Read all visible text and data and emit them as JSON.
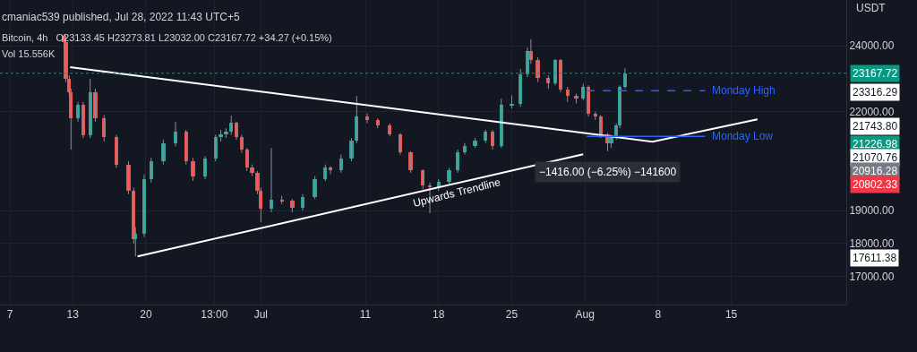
{
  "chart_data": {
    "type": "candlestick",
    "title": "Bitcoin, 4h",
    "subtitle": "O23133.45 H23273.81 L23032.00 C23167.72 +34.27 (+0.15%)",
    "ylabel": "USDT",
    "annotations": [
      "cmaniac539 published, Jul 28, 2022 11:43 UTC+5",
      "Vol 15.556K",
      "Upwards Trendline",
      "−1416.00 (−6.25%) −141600",
      "23316.29",
      "21743.80",
      "21226.98",
      "21070.76",
      "20916.28",
      "20802.33",
      "17611.38"
    ],
    "x": [
      "2022-06-12T04:00",
      "2022-06-12T08:00",
      "2022-06-12T16:00",
      "2022-06-12T20:00",
      "2022-06-13T12:00",
      "2022-06-14T00:00",
      "2022-06-14T16:00",
      "2022-06-15T04:00",
      "2022-06-16T00:00",
      "2022-06-17T04:00",
      "2022-06-18T08:00",
      "2022-06-18T20:00",
      "2022-06-19T00:00",
      "2022-06-19T20:00",
      "2022-06-20T12:00",
      "2022-06-21T16:00",
      "2022-06-22T20:00",
      "2022-06-23T20:00",
      "2022-06-24T12:00",
      "2022-06-25T16:00",
      "2022-06-26T16:00",
      "2022-06-27T04:00",
      "2022-06-27T16:00",
      "2022-06-28T04:00",
      "2022-06-28T16:00",
      "2022-06-29T04:00",
      "2022-06-29T16:00",
      "2022-06-30T04:00",
      "2022-06-30T16:00",
      "2022-07-01T00:00",
      "2022-07-02T00:00",
      "2022-07-03T00:00",
      "2022-07-04T00:00",
      "2022-07-05T00:00",
      "2022-07-06T04:00",
      "2022-07-07T04:00",
      "2022-07-07T16:00",
      "2022-07-08T16:00",
      "2022-07-09T16:00",
      "2022-07-10T04:00",
      "2022-07-11T04:00",
      "2022-07-12T04:00",
      "2022-07-13T08:00",
      "2022-07-14T08:00",
      "2022-07-15T08:00",
      "2022-07-16T12:00",
      "2022-07-17T04:00",
      "2022-07-18T00:00",
      "2022-07-19T00:00",
      "2022-07-19T20:00",
      "2022-07-20T12:00",
      "2022-07-21T12:00",
      "2022-07-22T12:00",
      "2022-07-23T04:00",
      "2022-07-24T00:00",
      "2022-07-25T00:00",
      "2022-07-25T20:00",
      "2022-07-26T12:00",
      "2022-07-26T20:00",
      "2022-07-27T12:00",
      "2022-07-28T12:00",
      "2022-07-29T04:00",
      "2022-07-29T16:00",
      "2022-07-30T08:00",
      "2022-07-31T04:00",
      "2022-07-31T20:00",
      "2022-08-01T08:00",
      "2022-08-02T00:00",
      "2022-08-02T12:00",
      "2022-08-03T04:00",
      "2022-08-03T12:00",
      "2022-08-04T00:00",
      "2022-08-04T08:00",
      "2022-08-04T20:00"
    ],
    "ohlc": [
      [
        24300,
        24350,
        23900,
        24100
      ],
      [
        24100,
        24150,
        22900,
        23000
      ],
      [
        23000,
        23100,
        22500,
        22600
      ],
      [
        22600,
        22700,
        20850,
        21800
      ],
      [
        21800,
        22300,
        21700,
        22200
      ],
      [
        22200,
        22300,
        21200,
        21300
      ],
      [
        21300,
        23000,
        21200,
        22600
      ],
      [
        22600,
        22700,
        21700,
        21800
      ],
      [
        21800,
        21900,
        21100,
        21230
      ],
      [
        21230,
        21300,
        20300,
        20400
      ],
      [
        20400,
        20500,
        19500,
        19600
      ],
      [
        19600,
        19700,
        18000,
        18130
      ],
      [
        18130,
        18500,
        17611,
        18300
      ],
      [
        18300,
        20100,
        18200,
        19950
      ],
      [
        19950,
        20600,
        19850,
        20500
      ],
      [
        20500,
        21150,
        20400,
        21040
      ],
      [
        21040,
        21700,
        20950,
        21390
      ],
      [
        21390,
        21450,
        20400,
        20500
      ],
      [
        20500,
        20600,
        19900,
        20030
      ],
      [
        20030,
        20650,
        19950,
        20580
      ],
      [
        20580,
        21300,
        20500,
        21230
      ],
      [
        21230,
        21450,
        21100,
        21310
      ],
      [
        21310,
        21500,
        21200,
        21390
      ],
      [
        21390,
        21880,
        21300,
        21660
      ],
      [
        21660,
        21700,
        21150,
        21230
      ],
      [
        21230,
        21300,
        20750,
        20850
      ],
      [
        20850,
        20900,
        20200,
        20300
      ],
      [
        20300,
        20400,
        20050,
        20140
      ],
      [
        20140,
        20200,
        19500,
        19600
      ],
      [
        19600,
        19700,
        18650,
        19050
      ],
      [
        19050,
        20900,
        18950,
        19330
      ],
      [
        19330,
        19450,
        19200,
        19300
      ],
      [
        19300,
        19350,
        18950,
        19080
      ],
      [
        19080,
        19500,
        19000,
        19400
      ],
      [
        19400,
        20050,
        19350,
        19950
      ],
      [
        19950,
        20400,
        19900,
        20300
      ],
      [
        20300,
        20350,
        20100,
        20220
      ],
      [
        20220,
        20700,
        20150,
        20580
      ],
      [
        20580,
        21200,
        20500,
        21120
      ],
      [
        21120,
        22480,
        21050,
        21850
      ],
      [
        21850,
        21950,
        21650,
        21750
      ],
      [
        21750,
        21800,
        21500,
        21580
      ],
      [
        21580,
        21650,
        21250,
        21310
      ],
      [
        21310,
        21350,
        20700,
        20770
      ],
      [
        20770,
        20800,
        20150,
        20220
      ],
      [
        20220,
        20250,
        19650,
        19760
      ],
      [
        19760,
        19850,
        18920,
        19700
      ],
      [
        19700,
        19950,
        19600,
        19870
      ],
      [
        19870,
        20300,
        19800,
        20220
      ],
      [
        20220,
        20850,
        20150,
        20770
      ],
      [
        20770,
        21050,
        20700,
        20960
      ],
      [
        20960,
        21200,
        20900,
        21120
      ],
      [
        21120,
        21450,
        21050,
        21390
      ],
      [
        21390,
        21450,
        20850,
        20960
      ],
      [
        20960,
        22400,
        20900,
        22200
      ],
      [
        22200,
        22500,
        22100,
        22250
      ],
      [
        22250,
        23300,
        22150,
        23130
      ],
      [
        23130,
        23950,
        23050,
        23840
      ],
      [
        23840,
        24200,
        23450,
        23570
      ],
      [
        23570,
        23650,
        22900,
        23020
      ],
      [
        23020,
        23100,
        22700,
        22860
      ],
      [
        22860,
        23600,
        22800,
        23570
      ],
      [
        23570,
        23600,
        22600,
        22670
      ],
      [
        22670,
        22750,
        22300,
        22480
      ],
      [
        22480,
        22550,
        22250,
        22400
      ],
      [
        22400,
        22850,
        22350,
        22750
      ],
      [
        22750,
        22800,
        21850,
        21930
      ],
      [
        21930,
        22000,
        21750,
        21850
      ],
      [
        21850,
        21900,
        21200,
        21310
      ],
      [
        21310,
        21350,
        20800,
        21040
      ],
      [
        21040,
        21300,
        20900,
        21230
      ],
      [
        21230,
        21650,
        21150,
        21580
      ],
      [
        21580,
        22800,
        21500,
        22750
      ],
      [
        22750,
        23320,
        22700,
        23168
      ]
    ],
    "series": [
      {
        "type": "line",
        "color": "#ffffff",
        "x": [
          "2022-06-12T18:00",
          "2022-08-07T11:00",
          "2022-08-17T12:00"
        ],
        "values": [
          23350,
          21090,
          21770
        ]
      },
      {
        "type": "line",
        "color": "#ffffff",
        "x": [
          "2022-06-19T05:00",
          "2022-07-31T20:00"
        ],
        "values": [
          17610,
          20710
        ]
      },
      {
        "type": "line",
        "name": "Monday High",
        "color": "#2962ff",
        "line_style": "dashed",
        "x": [
          "2022-08-01T04:00",
          "2022-08-12T12:00"
        ],
        "values": [
          22640,
          22640
        ]
      },
      {
        "type": "line",
        "name": "Monday Low",
        "color": "#2962ff",
        "line_style": "solid",
        "x": [
          "2022-08-01T04:00",
          "2022-08-12T12:00"
        ],
        "values": [
          21250,
          21250
        ]
      }
    ],
    "ref_lines": [
      {
        "axis": "y",
        "value": 23167.72,
        "label": "23167.72",
        "color": "#089981",
        "line_style": "dotted"
      }
    ],
    "xlim": [
      "2022-06-06T01:00",
      "2022-08-26T00:00"
    ],
    "xticks": [
      {
        "value": "2022-06-07",
        "label": "7"
      },
      {
        "value": "2022-06-13",
        "label": "13"
      },
      {
        "value": "2022-06-20",
        "label": "20"
      },
      {
        "value": "2022-06-26T13:00",
        "label": "13:00"
      },
      {
        "value": "2022-07-01",
        "label": "Jul"
      },
      {
        "value": "2022-07-11",
        "label": "11"
      },
      {
        "value": "2022-07-18",
        "label": "18"
      },
      {
        "value": "2022-07-25",
        "label": "25"
      },
      {
        "value": "2022-08-01",
        "label": "Aug"
      },
      {
        "value": "2022-08-08",
        "label": "8"
      },
      {
        "value": "2022-08-15",
        "label": "15"
      }
    ],
    "ylim": [
      16150,
      25390
    ],
    "yticks": [
      {
        "value": 17000,
        "label": "17000.00"
      },
      {
        "value": 18000,
        "label": "18000.00"
      },
      {
        "value": 19000,
        "label": "19000.00"
      },
      {
        "value": 22000,
        "label": "22000.00"
      },
      {
        "value": 24000,
        "label": "24000.00"
      }
    ],
    "grid": true
  }
}
